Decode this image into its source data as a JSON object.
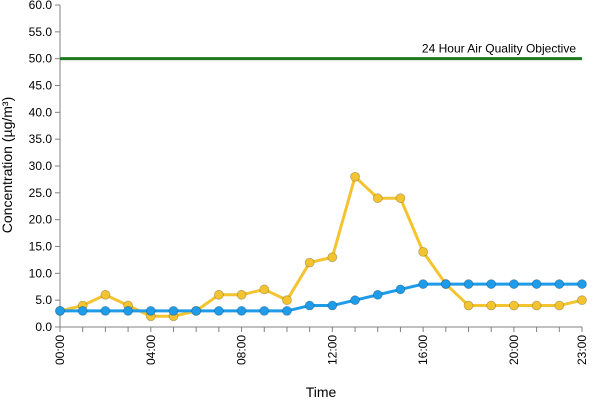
{
  "chart_data": {
    "type": "line",
    "xlabel": "Time",
    "ylabel": "Concentration (µg/m³)",
    "ylim": [
      0,
      60
    ],
    "y_ticks": [
      "0.0",
      "5.0",
      "10.0",
      "15.0",
      "20.0",
      "25.0",
      "30.0",
      "35.0",
      "40.0",
      "45.0",
      "50.0",
      "55.0",
      "60.0"
    ],
    "x_hours": [
      0,
      1,
      2,
      3,
      4,
      5,
      6,
      7,
      8,
      9,
      10,
      11,
      12,
      13,
      14,
      15,
      16,
      17,
      18,
      19,
      20,
      21,
      22,
      23
    ],
    "x_tick_labels": [
      {
        "hour": 0,
        "label": "00:00"
      },
      {
        "hour": 4,
        "label": "04:00"
      },
      {
        "hour": 8,
        "label": "08:00"
      },
      {
        "hour": 12,
        "label": "12:00"
      },
      {
        "hour": 16,
        "label": "16:00"
      },
      {
        "hour": 20,
        "label": "20:00"
      },
      {
        "hour": 23,
        "label": "23:00"
      }
    ],
    "series": [
      {
        "color": "#f4c430",
        "line_color": "#f4c430",
        "values": [
          3,
          4,
          6,
          4,
          2,
          2,
          3,
          6,
          6,
          7,
          5,
          12,
          13,
          28,
          24,
          24,
          14,
          8,
          4,
          4,
          4,
          4,
          4,
          5
        ]
      },
      {
        "color": "#1e9be9",
        "line_color": "#1e9be9",
        "values": [
          3,
          3,
          3,
          3,
          3,
          3,
          3,
          3,
          3,
          3,
          3,
          4,
          4,
          5,
          6,
          7,
          8,
          8,
          8,
          8,
          8,
          8,
          8,
          8
        ]
      }
    ],
    "objective": {
      "value": 50,
      "label": "24 Hour Air Quality Objective",
      "color": "#1f7a1f"
    },
    "grid": false,
    "legend": "none"
  }
}
